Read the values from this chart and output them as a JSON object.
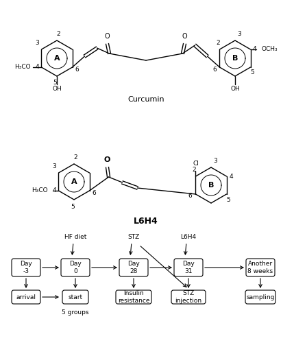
{
  "curcumin_label": "Curcumin",
  "l6h4_label": "L6H4",
  "bg_color": "#ffffff",
  "flowchart_boxes_top": [
    "Day\n-3",
    "Day\n0",
    "Day\n28",
    "Day\n31",
    "Another\n8 weeks"
  ],
  "flowchart_boxes_bot": [
    "arrival",
    "start",
    "Insulin\nresistance",
    "STZ\ninjection",
    "sampling"
  ],
  "flowchart_labels_above": [
    "",
    "HF diet",
    "STZ",
    "L6H4",
    ""
  ],
  "five_groups": "5 groups"
}
